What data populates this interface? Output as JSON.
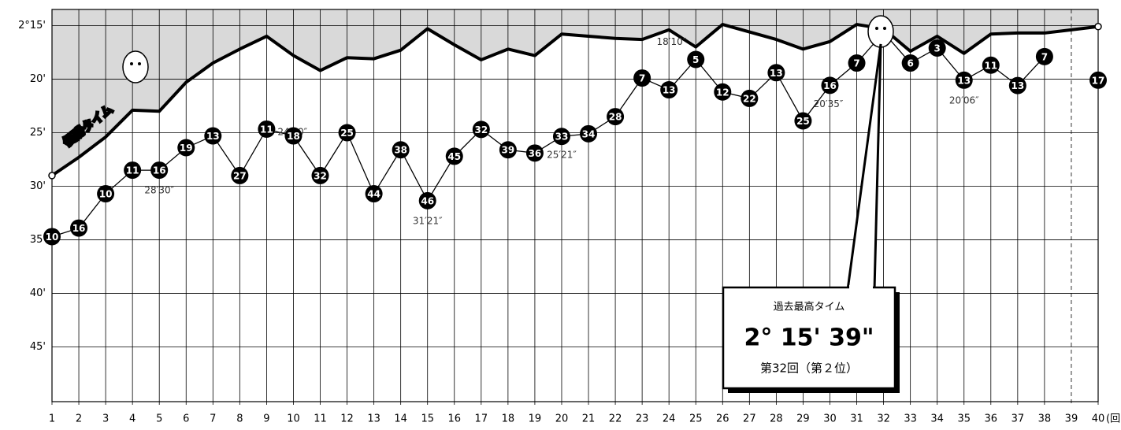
{
  "chart_data": {
    "type": "line",
    "x": [
      1,
      2,
      3,
      4,
      5,
      6,
      7,
      8,
      9,
      10,
      11,
      12,
      13,
      14,
      15,
      16,
      17,
      18,
      19,
      20,
      21,
      22,
      23,
      24,
      25,
      26,
      27,
      28,
      29,
      30,
      31,
      32,
      33,
      34,
      35,
      36,
      37,
      38,
      39,
      40
    ],
    "x_unit": "(回)",
    "xlim": [
      1,
      40
    ],
    "ylim": [
      50.1,
      13.5
    ],
    "yticks": [
      {
        "value": 15,
        "label": "2°15'"
      },
      {
        "value": 20,
        "label": "20'"
      },
      {
        "value": 25,
        "label": "25'"
      },
      {
        "value": 30,
        "label": "30'"
      },
      {
        "value": 35,
        "label": "35'"
      },
      {
        "value": 40,
        "label": "40'"
      },
      {
        "value": 45,
        "label": "45'"
      }
    ],
    "grid": true,
    "dashed_x": [
      39
    ],
    "area_color": "#d9d9d9",
    "series": [
      {
        "name": "優勝タイム",
        "color": "#000000",
        "values": [
          29.0,
          27.3,
          25.4,
          22.9,
          23.0,
          20.3,
          18.5,
          17.2,
          16.0,
          17.8,
          19.2,
          18.0,
          18.1,
          17.3,
          15.3,
          16.8,
          18.2,
          17.2,
          17.8,
          15.8,
          16.0,
          16.2,
          16.3,
          15.4,
          17.0,
          14.9,
          15.6,
          16.3,
          17.2,
          16.5,
          14.9,
          15.3,
          17.4,
          16.0,
          17.6,
          15.8,
          15.7,
          15.7,
          15.4,
          15.1
        ]
      },
      {
        "color": "#000000",
        "values": [
          34.7,
          33.9,
          30.7,
          28.5,
          28.5,
          26.4,
          25.3,
          29.0,
          24.667,
          25.3,
          29.0,
          25.0,
          30.7,
          26.6,
          31.35,
          27.2,
          24.7,
          26.6,
          26.9,
          25.35,
          25.1,
          23.5,
          19.9,
          21.0,
          18.167,
          21.2,
          21.8,
          19.4,
          23.9,
          20.583,
          18.5,
          15.65,
          18.5,
          17.1,
          20.1,
          18.7,
          20.6,
          17.9,
          null,
          20.1
        ],
        "value_labels": [
          null,
          null,
          null,
          null,
          "28′30″",
          null,
          null,
          null,
          "24′40″",
          null,
          null,
          null,
          null,
          null,
          "31′21″",
          null,
          null,
          null,
          null,
          "25′21″",
          null,
          null,
          null,
          null,
          "18′10″",
          null,
          null,
          null,
          null,
          "20′35″",
          null,
          null,
          null,
          null,
          "20′06″",
          null,
          null,
          null,
          null,
          null
        ],
        "ranks": [
          "10",
          "16",
          "10",
          "11",
          "16",
          "19",
          "13",
          "27",
          "11",
          "18",
          "32",
          "25",
          "44",
          "38",
          "46",
          "45",
          "32",
          "39",
          "36",
          "33",
          "34",
          "28",
          "7",
          "13",
          "5",
          "12",
          "22",
          "13",
          "25",
          "16",
          "7",
          null,
          "6",
          "3",
          "13",
          "11",
          "13",
          "7",
          null,
          "17"
        ]
      }
    ],
    "callout": {
      "title": "過去最高タイム",
      "time": "2° 15' 39\"",
      "note": "第32回（第２位）"
    }
  }
}
